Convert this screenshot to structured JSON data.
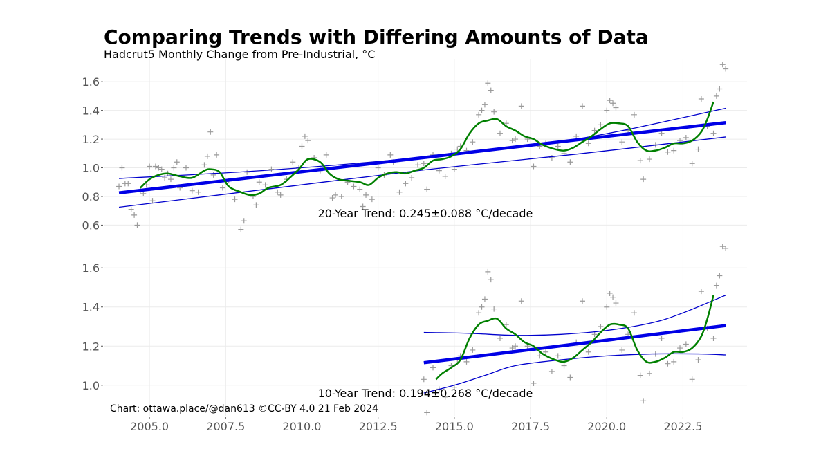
{
  "title": "Comparing Trends with Differing Amounts of Data",
  "subtitle": "Hadcrut5 Monthly Change from Pre-Industrial, °C",
  "credit": "Chart: ottawa.place/@dan613 ©CC-BY 4.0  21 Feb 2024",
  "colors": {
    "points": "#9a9a9a",
    "trend": "#0000e6",
    "ci": "#0000cc",
    "smooth": "#008000",
    "grid": "#ebebeb"
  },
  "chart_data": [
    {
      "type": "scatter",
      "panel": "top",
      "trend_label": "20-Year Trend: 0.245±0.088 °C/decade",
      "xlim": [
        2003.5,
        2024.6
      ],
      "ylim": [
        0.52,
        1.76
      ],
      "x_ticks": [
        2005.0,
        2007.5,
        2010.0,
        2012.5,
        2015.0,
        2017.5,
        2020.0,
        2022.5
      ],
      "y_ticks": [
        0.6,
        0.8,
        1.0,
        1.2,
        1.4,
        1.6
      ],
      "x_tick_labels": [
        "2005.0",
        "2007.5",
        "2010.0",
        "2012.5",
        "2015.0",
        "2017.5",
        "2020.0",
        "2022.5"
      ],
      "y_tick_labels": [
        "0.6",
        "0.8",
        "1.0",
        "1.2",
        "1.4",
        "1.6"
      ],
      "trend": {
        "x": [
          2004.0,
          2023.9
        ],
        "y": [
          0.825,
          1.315
        ]
      },
      "ci_upper": {
        "x": [
          2004.0,
          2009.0,
          2014.0,
          2019.0,
          2023.9
        ],
        "y": [
          0.925,
          0.985,
          1.075,
          1.2,
          1.415
        ]
      },
      "ci_lower": {
        "x": [
          2004.0,
          2009.0,
          2014.0,
          2019.0,
          2023.9
        ],
        "y": [
          0.725,
          0.855,
          0.985,
          1.095,
          1.215
        ]
      },
      "smooth": {
        "x": [
          2004.7,
          2005.0,
          2005.3,
          2005.6,
          2006.0,
          2006.4,
          2006.8,
          2007.0,
          2007.3,
          2007.6,
          2008.0,
          2008.3,
          2008.6,
          2008.9,
          2009.3,
          2009.6,
          2009.9,
          2010.2,
          2010.6,
          2010.9,
          2011.2,
          2011.5,
          2011.9,
          2012.2,
          2012.5,
          2012.8,
          2013.1,
          2013.4,
          2013.7,
          2014.0,
          2014.3,
          2014.6,
          2014.9,
          2015.2,
          2015.5,
          2015.8,
          2016.1,
          2016.4,
          2016.7,
          2017.0,
          2017.3,
          2017.6,
          2017.9,
          2018.3,
          2018.6,
          2018.9,
          2019.2,
          2019.5,
          2019.8,
          2020.1,
          2020.4,
          2020.7,
          2021.0,
          2021.3,
          2021.6,
          2021.9,
          2022.2,
          2022.5,
          2022.8,
          2023.1,
          2023.3,
          2023.5
        ],
        "y": [
          0.86,
          0.92,
          0.95,
          0.96,
          0.94,
          0.93,
          0.98,
          0.99,
          0.97,
          0.87,
          0.83,
          0.81,
          0.82,
          0.86,
          0.88,
          0.93,
          0.99,
          1.06,
          1.04,
          0.96,
          0.92,
          0.91,
          0.9,
          0.88,
          0.93,
          0.96,
          0.97,
          0.96,
          0.98,
          1.0,
          1.05,
          1.06,
          1.08,
          1.13,
          1.24,
          1.31,
          1.33,
          1.34,
          1.29,
          1.26,
          1.22,
          1.2,
          1.16,
          1.13,
          1.12,
          1.14,
          1.18,
          1.22,
          1.27,
          1.31,
          1.31,
          1.29,
          1.18,
          1.12,
          1.12,
          1.14,
          1.17,
          1.17,
          1.19,
          1.25,
          1.34,
          1.46
        ]
      },
      "points": {
        "x": [
          2004.0,
          2004.1,
          2004.2,
          2004.3,
          2004.4,
          2004.5,
          2004.6,
          2004.7,
          2004.8,
          2004.9,
          2005.0,
          2005.1,
          2005.2,
          2005.3,
          2005.4,
          2005.5,
          2005.6,
          2005.7,
          2005.8,
          2005.9,
          2006.0,
          2006.2,
          2006.4,
          2006.6,
          2006.8,
          2006.9,
          2007.0,
          2007.1,
          2007.2,
          2007.4,
          2007.6,
          2007.8,
          2008.0,
          2008.1,
          2008.2,
          2008.4,
          2008.5,
          2008.6,
          2008.8,
          2009.0,
          2009.2,
          2009.3,
          2009.5,
          2009.7,
          2009.9,
          2010.0,
          2010.1,
          2010.2,
          2010.4,
          2010.6,
          2010.8,
          2011.0,
          2011.1,
          2011.3,
          2011.5,
          2011.7,
          2011.9,
          2012.0,
          2012.1,
          2012.3,
          2012.5,
          2012.7,
          2012.9,
          2013.0,
          2013.2,
          2013.4,
          2013.6,
          2013.8,
          2014.0,
          2014.1,
          2014.3,
          2014.5,
          2014.7,
          2014.9,
          2015.0,
          2015.1,
          2015.2,
          2015.4,
          2015.6,
          2015.8,
          2015.9,
          2016.0,
          2016.1,
          2016.2,
          2016.3,
          2016.5,
          2016.7,
          2016.9,
          2017.0,
          2017.2,
          2017.4,
          2017.6,
          2017.8,
          2018.0,
          2018.2,
          2018.4,
          2018.6,
          2018.8,
          2019.0,
          2019.2,
          2019.4,
          2019.6,
          2019.8,
          2020.0,
          2020.1,
          2020.2,
          2020.3,
          2020.5,
          2020.7,
          2020.9,
          2021.1,
          2021.2,
          2021.4,
          2021.6,
          2021.8,
          2022.0,
          2022.2,
          2022.4,
          2022.6,
          2022.8,
          2023.0,
          2023.1,
          2023.3,
          2023.5,
          2023.6,
          2023.7,
          2023.8,
          2023.9
        ],
        "y": [
          0.87,
          1.0,
          0.89,
          0.89,
          0.71,
          0.67,
          0.6,
          0.84,
          0.82,
          0.88,
          1.01,
          0.77,
          1.01,
          1.0,
          0.99,
          0.93,
          0.96,
          0.92,
          1.0,
          1.04,
          0.86,
          1.0,
          0.84,
          0.83,
          1.02,
          1.08,
          1.25,
          0.95,
          1.09,
          0.86,
          0.91,
          0.78,
          0.57,
          0.63,
          0.97,
          0.8,
          0.74,
          0.9,
          0.88,
          0.99,
          0.83,
          0.81,
          0.92,
          1.04,
          1.0,
          1.15,
          1.22,
          1.19,
          1.07,
          0.98,
          1.09,
          0.79,
          0.81,
          0.8,
          0.9,
          0.87,
          0.85,
          0.73,
          0.81,
          0.78,
          1.0,
          0.95,
          1.09,
          1.04,
          0.83,
          0.89,
          0.93,
          1.02,
          1.03,
          0.85,
          1.09,
          0.98,
          0.94,
          1.1,
          0.99,
          1.13,
          1.15,
          1.12,
          1.18,
          1.37,
          1.4,
          1.44,
          1.59,
          1.54,
          1.39,
          1.24,
          1.31,
          1.19,
          1.2,
          1.43,
          1.2,
          1.01,
          1.15,
          1.17,
          1.07,
          1.15,
          1.1,
          1.04,
          1.22,
          1.43,
          1.17,
          1.26,
          1.3,
          1.4,
          1.47,
          1.45,
          1.42,
          1.18,
          1.26,
          1.37,
          1.05,
          0.92,
          1.06,
          1.16,
          1.24,
          1.11,
          1.12,
          1.19,
          1.21,
          1.03,
          1.13,
          1.48,
          1.29,
          1.24,
          1.5,
          1.55,
          1.72,
          1.69
        ]
      }
    },
    {
      "type": "scatter",
      "panel": "bottom",
      "trend_label": "10-Year Trend: 0.194±0.268 °C/decade",
      "xlim": [
        2003.5,
        2024.6
      ],
      "ylim": [
        0.84,
        1.76
      ],
      "x_ticks": [
        2005.0,
        2007.5,
        2010.0,
        2012.5,
        2015.0,
        2017.5,
        2020.0,
        2022.5
      ],
      "y_ticks": [
        1.0,
        1.2,
        1.4,
        1.6
      ],
      "x_tick_labels": [
        "2005.0",
        "2007.5",
        "2010.0",
        "2012.5",
        "2015.0",
        "2017.5",
        "2020.0",
        "2022.5"
      ],
      "y_tick_labels": [
        "1.0",
        "1.2",
        "1.4",
        "1.6"
      ],
      "trend": {
        "x": [
          2014.0,
          2023.9
        ],
        "y": [
          1.115,
          1.305
        ]
      },
      "ci_upper": {
        "x": [
          2014.0,
          2015.5,
          2017.0,
          2018.5,
          2020.0,
          2021.5,
          2022.5,
          2023.9
        ],
        "y": [
          1.27,
          1.265,
          1.255,
          1.26,
          1.28,
          1.32,
          1.37,
          1.46
        ]
      },
      "ci_lower": {
        "x": [
          2014.0,
          2015.0,
          2016.0,
          2017.0,
          2018.5,
          2020.0,
          2021.5,
          2023.0,
          2023.9
        ],
        "y": [
          0.96,
          1.0,
          1.05,
          1.1,
          1.13,
          1.15,
          1.16,
          1.16,
          1.155
        ]
      },
      "smooth": {
        "x": [
          2014.4,
          2014.6,
          2014.9,
          2015.2,
          2015.5,
          2015.8,
          2016.1,
          2016.4,
          2016.7,
          2017.0,
          2017.3,
          2017.6,
          2017.9,
          2018.3,
          2018.6,
          2018.9,
          2019.2,
          2019.5,
          2019.8,
          2020.1,
          2020.4,
          2020.7,
          2021.0,
          2021.3,
          2021.6,
          2021.9,
          2022.2,
          2022.5,
          2022.8,
          2023.1,
          2023.3,
          2023.5
        ],
        "y": [
          1.03,
          1.06,
          1.09,
          1.13,
          1.24,
          1.31,
          1.33,
          1.34,
          1.29,
          1.26,
          1.22,
          1.2,
          1.16,
          1.13,
          1.12,
          1.14,
          1.18,
          1.22,
          1.27,
          1.31,
          1.31,
          1.29,
          1.18,
          1.12,
          1.12,
          1.14,
          1.17,
          1.17,
          1.19,
          1.25,
          1.34,
          1.46
        ]
      },
      "points": {
        "x": [
          2014.0,
          2014.1,
          2014.3,
          2014.5,
          2014.7,
          2014.9,
          2015.0,
          2015.1,
          2015.2,
          2015.4,
          2015.6,
          2015.8,
          2015.9,
          2016.0,
          2016.1,
          2016.2,
          2016.3,
          2016.5,
          2016.7,
          2016.9,
          2017.0,
          2017.2,
          2017.4,
          2017.6,
          2017.8,
          2018.0,
          2018.2,
          2018.4,
          2018.6,
          2018.8,
          2019.0,
          2019.2,
          2019.4,
          2019.6,
          2019.8,
          2020.0,
          2020.1,
          2020.2,
          2020.3,
          2020.5,
          2020.7,
          2020.9,
          2021.1,
          2021.2,
          2021.4,
          2021.6,
          2021.8,
          2022.0,
          2022.2,
          2022.4,
          2022.6,
          2022.8,
          2023.0,
          2023.1,
          2023.3,
          2023.5,
          2023.6,
          2023.7,
          2023.8,
          2023.9
        ],
        "y": [
          1.03,
          0.86,
          1.09,
          0.98,
          0.94,
          1.1,
          0.99,
          1.13,
          1.15,
          1.12,
          1.18,
          1.37,
          1.4,
          1.44,
          1.58,
          1.54,
          1.39,
          1.24,
          1.31,
          1.19,
          1.2,
          1.43,
          1.2,
          1.01,
          1.15,
          1.17,
          1.07,
          1.15,
          1.1,
          1.04,
          1.22,
          1.43,
          1.17,
          1.26,
          1.3,
          1.4,
          1.47,
          1.45,
          1.42,
          1.18,
          1.26,
          1.37,
          1.05,
          0.92,
          1.06,
          1.16,
          1.24,
          1.11,
          1.12,
          1.19,
          1.21,
          1.03,
          1.13,
          1.48,
          1.29,
          1.24,
          1.51,
          1.56,
          1.71,
          1.7
        ]
      }
    }
  ]
}
